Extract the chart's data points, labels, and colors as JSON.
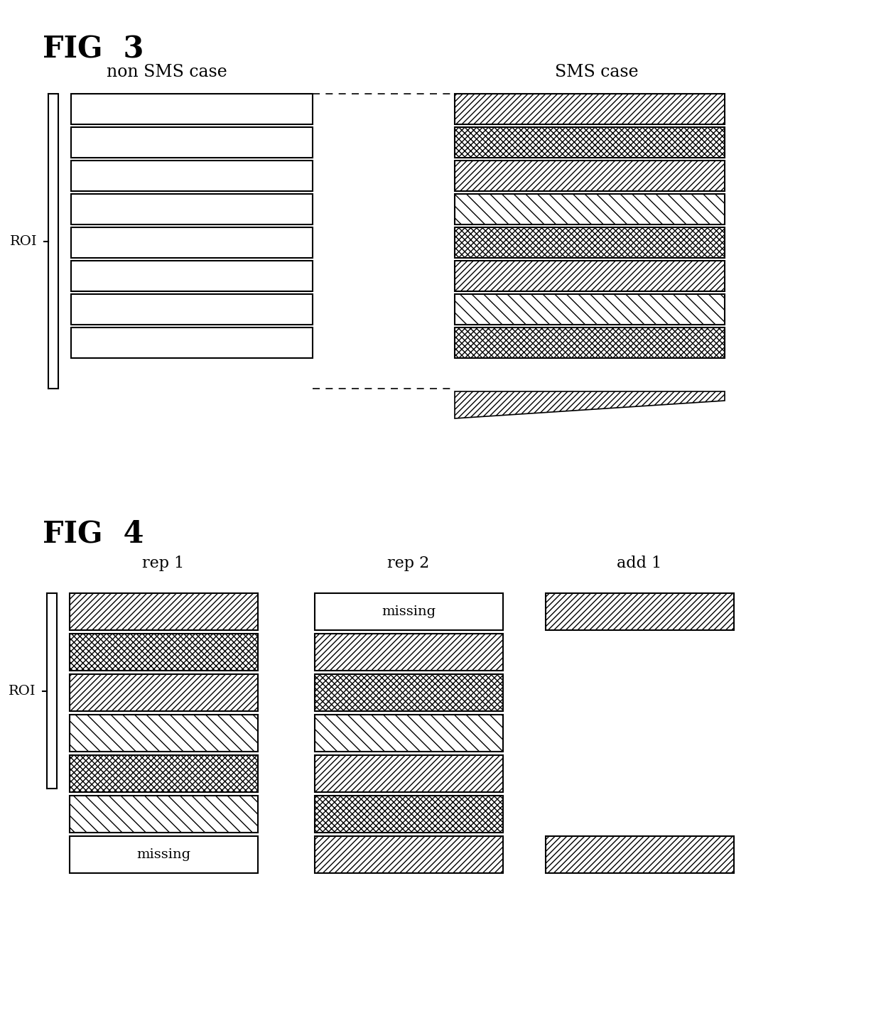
{
  "fig3_title": "FIG  3",
  "fig4_title": "FIG  4",
  "non_sms_label": "non SMS case",
  "sms_label": "SMS case",
  "rep1_label": "rep 1",
  "rep2_label": "rep 2",
  "add1_label": "add 1",
  "roi_label": "ROI",
  "missing_label": "missing",
  "num_slices_fig3": 8,
  "num_slices_fig4": 7,
  "bg_color": "#ffffff",
  "fig3_sms_hatch": [
    "////",
    "xxxx",
    "////",
    "\\\\",
    "xxxx",
    "////",
    "\\\\",
    "xxxx"
  ],
  "fig4_rep1_hatch": [
    "////",
    "xxxx",
    "////",
    "\\\\",
    "xxxx",
    "\\\\",
    null
  ],
  "fig4_rep1_missing": [
    false,
    false,
    false,
    false,
    false,
    false,
    true
  ],
  "fig4_rep2_hatch": [
    null,
    "////",
    "xxxx",
    "\\\\",
    "////",
    "xxxx",
    "////"
  ],
  "fig4_rep2_missing": [
    true,
    false,
    false,
    false,
    false,
    false,
    false
  ],
  "fig4_add1_show": [
    true,
    false,
    false,
    false,
    false,
    false,
    true
  ]
}
